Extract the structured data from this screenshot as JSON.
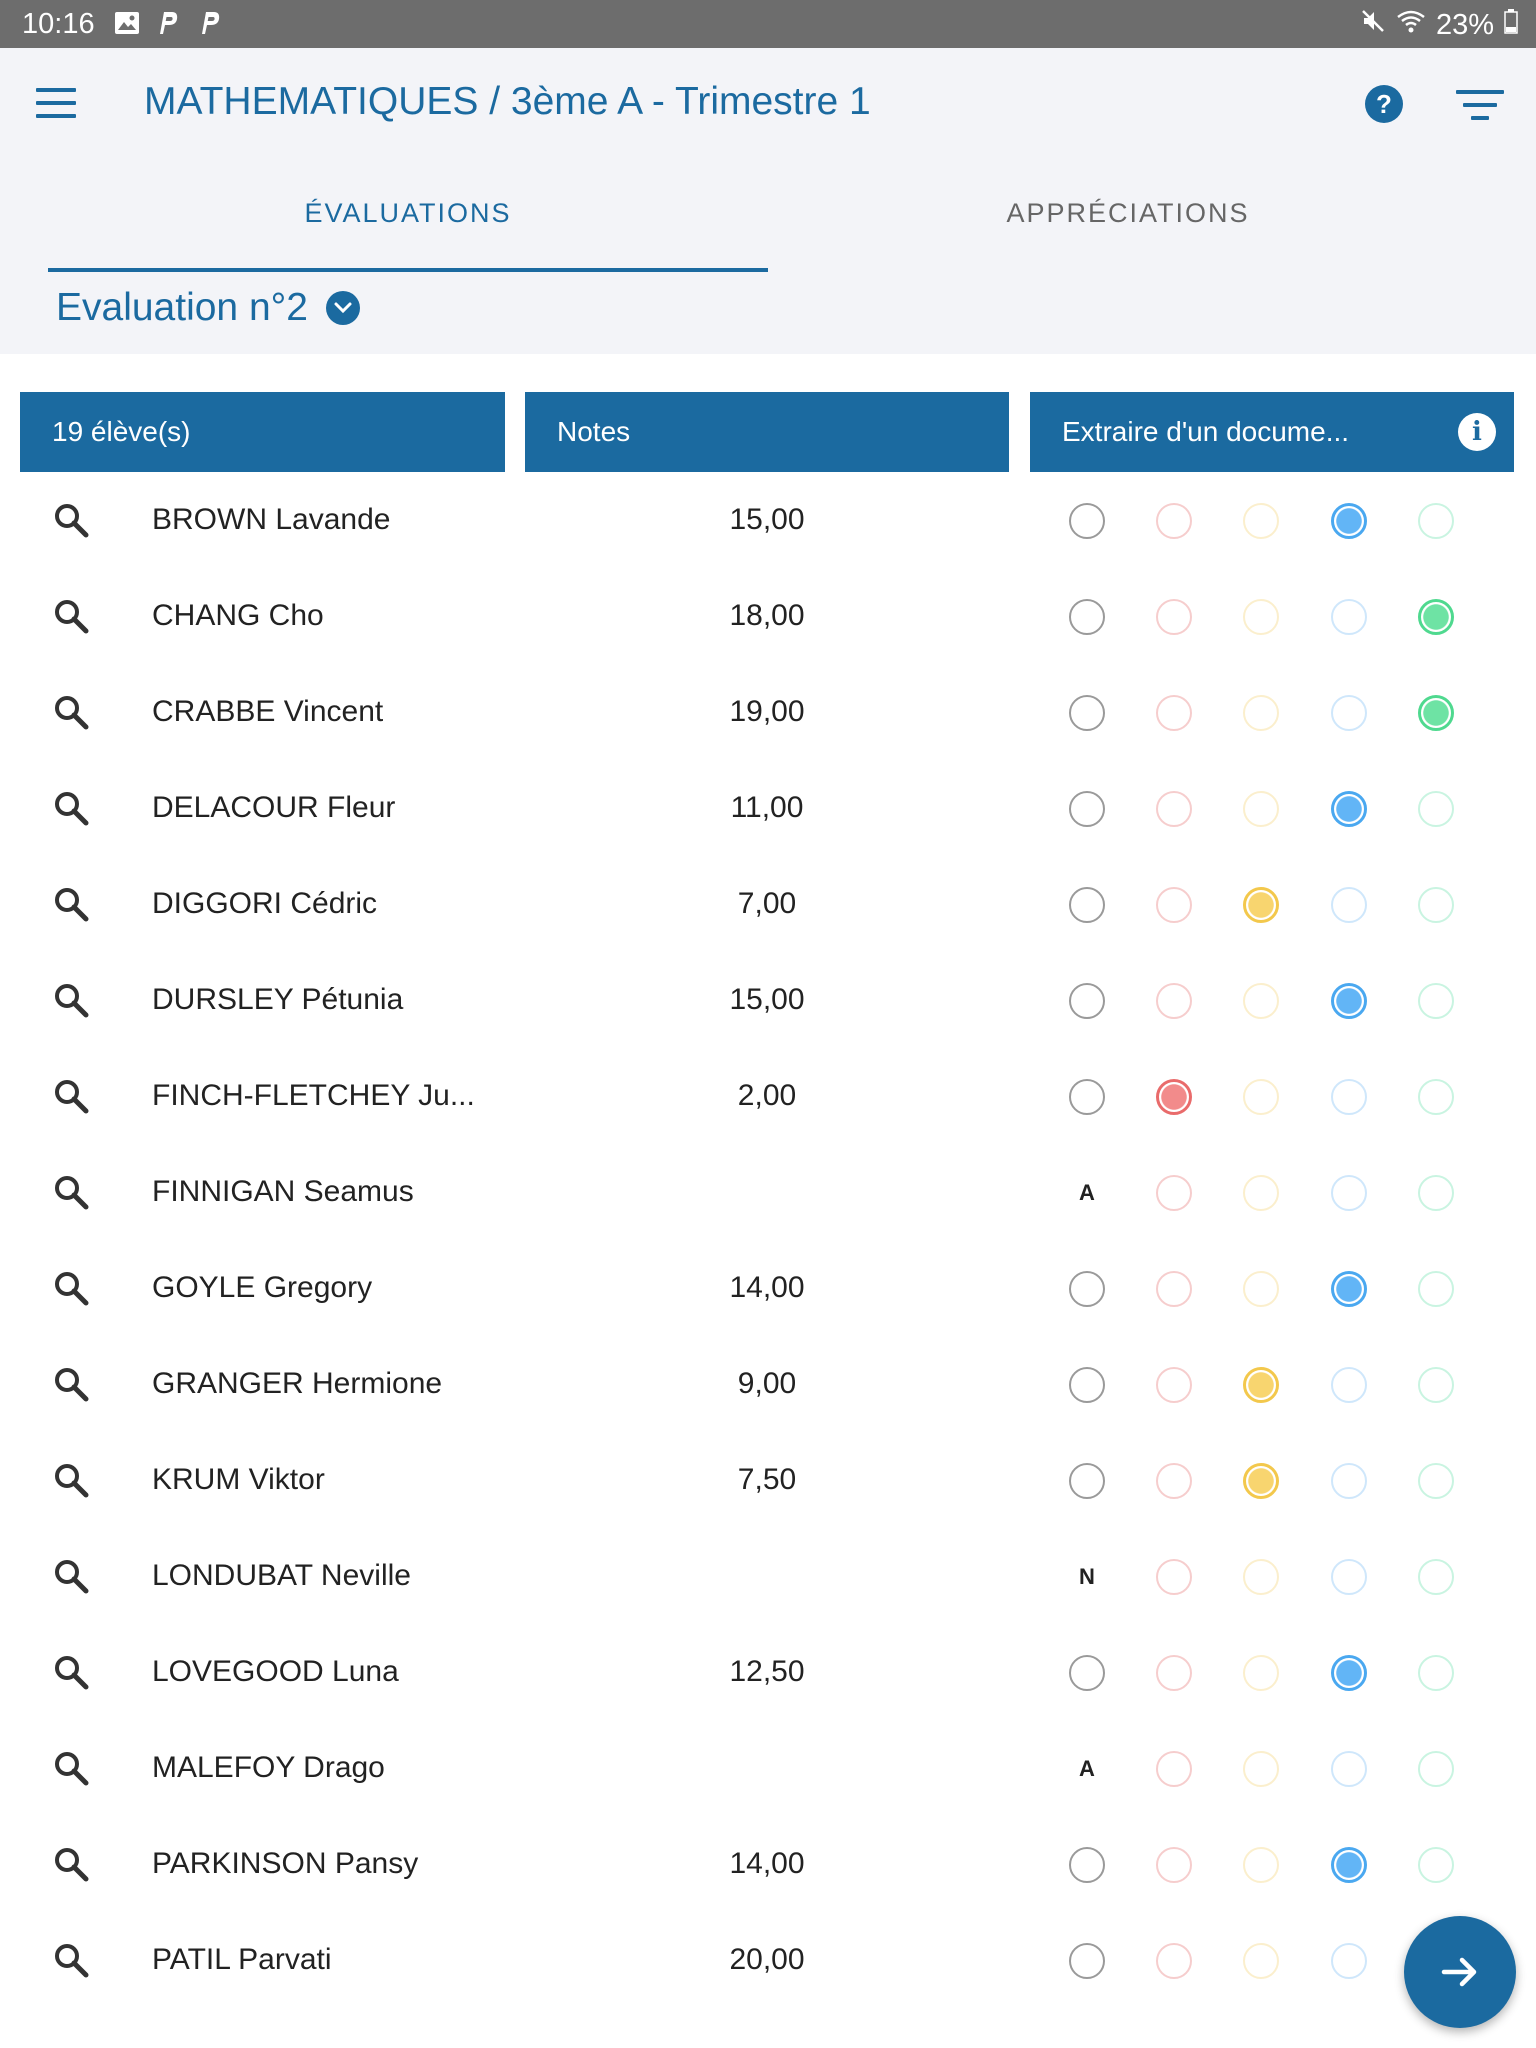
{
  "status_bar": {
    "time": "10:16",
    "battery": "23%"
  },
  "header": {
    "title": "MATHEMATIQUES / 3ème A - Trimestre 1"
  },
  "tabs": [
    {
      "label": "ÉVALUATIONS",
      "active": true
    },
    {
      "label": "APPRÉCIATIONS",
      "active": false
    }
  ],
  "evaluation_selector": {
    "label": "Evaluation n°2"
  },
  "columns": {
    "students": "19 élève(s)",
    "notes": "Notes",
    "extract": "Extraire d'un docume..."
  },
  "icons": {
    "menu": "menu-icon",
    "help": "help-icon",
    "filter": "filter-icon",
    "dropdown": "chevron-down-icon",
    "info": "info-icon",
    "search": "search-icon",
    "next": "arrow-right-icon"
  },
  "colors": {
    "accent": "#1b6aa0",
    "red": "#f28b8b",
    "yellow": "#f8d56f",
    "blue": "#62b5f6",
    "green": "#6ee3a4"
  },
  "students": [
    {
      "name": "BROWN Lavande",
      "note": "15,00",
      "level": 3,
      "letter": ""
    },
    {
      "name": "CHANG Cho",
      "note": "18,00",
      "level": 4,
      "letter": ""
    },
    {
      "name": "CRABBE Vincent",
      "note": "19,00",
      "level": 4,
      "letter": ""
    },
    {
      "name": "DELACOUR Fleur",
      "note": "11,00",
      "level": 3,
      "letter": ""
    },
    {
      "name": "DIGGORI Cédric",
      "note": "7,00",
      "level": 2,
      "letter": ""
    },
    {
      "name": "DURSLEY Pétunia",
      "note": "15,00",
      "level": 3,
      "letter": ""
    },
    {
      "name": "FINCH-FLETCHEY Ju...",
      "note": "2,00",
      "level": 1,
      "letter": ""
    },
    {
      "name": "FINNIGAN Seamus",
      "note": "",
      "level": null,
      "letter": "A"
    },
    {
      "name": "GOYLE Gregory",
      "note": "14,00",
      "level": 3,
      "letter": ""
    },
    {
      "name": "GRANGER Hermione",
      "note": "9,00",
      "level": 2,
      "letter": ""
    },
    {
      "name": "KRUM Viktor",
      "note": "7,50",
      "level": 2,
      "letter": ""
    },
    {
      "name": "LONDUBAT Neville",
      "note": "",
      "level": null,
      "letter": "N"
    },
    {
      "name": "LOVEGOOD Luna",
      "note": "12,50",
      "level": 3,
      "letter": ""
    },
    {
      "name": "MALEFOY Drago",
      "note": "",
      "level": null,
      "letter": "A"
    },
    {
      "name": "PARKINSON Pansy",
      "note": "14,00",
      "level": 3,
      "letter": ""
    },
    {
      "name": "PATIL Parvati",
      "note": "20,00",
      "level": null,
      "letter": ""
    }
  ]
}
